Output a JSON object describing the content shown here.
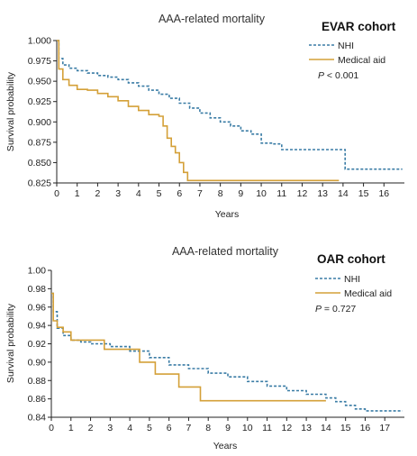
{
  "chart_data": [
    {
      "type": "line",
      "title": "AAA-related mortality",
      "cohort_label": "EVAR cohort",
      "xlabel": "Years",
      "ylabel": "Survival probability",
      "xlim": [
        0,
        17
      ],
      "ylim": [
        0.825,
        1.0
      ],
      "x_ticks": [
        0,
        1,
        2,
        3,
        4,
        5,
        6,
        7,
        8,
        9,
        10,
        11,
        12,
        13,
        14,
        15,
        16
      ],
      "y_ticks": [
        0.825,
        0.85,
        0.875,
        0.9,
        0.925,
        0.95,
        0.975,
        1.0
      ],
      "y_tick_labels": [
        "0.825",
        "0.850",
        "0.875",
        "0.900",
        "0.925",
        "0.950",
        "0.975",
        "1.000"
      ],
      "p_prefix": "P",
      "p_value": " < 0.001",
      "legend_position": "top-right",
      "series": [
        {
          "name": "NHI",
          "color": "#3a7ca5",
          "style": "dashed",
          "x": [
            0,
            0.1,
            0.3,
            0.6,
            1,
            1.5,
            2,
            2.5,
            3,
            3.5,
            4,
            4.5,
            5,
            5.5,
            6,
            6.5,
            7,
            7.5,
            8,
            8.5,
            9,
            9.5,
            10,
            10.5,
            11,
            11.5,
            12,
            12.5,
            13,
            13.5,
            14,
            14.1,
            15,
            16,
            16.9
          ],
          "y": [
            1.0,
            0.978,
            0.97,
            0.966,
            0.963,
            0.96,
            0.957,
            0.955,
            0.952,
            0.948,
            0.944,
            0.939,
            0.934,
            0.929,
            0.923,
            0.917,
            0.911,
            0.905,
            0.9,
            0.895,
            0.889,
            0.885,
            0.874,
            0.873,
            0.866,
            0.866,
            0.866,
            0.866,
            0.866,
            0.866,
            0.866,
            0.842,
            0.842,
            0.842,
            0.842
          ],
          "y_display": [
            1.0,
            0.98,
            0.97,
            0.97,
            0.96,
            0.96,
            0.96,
            0.96,
            0.95,
            0.95,
            0.94,
            0.94,
            0.93,
            0.93,
            0.92,
            0.92,
            0.91,
            0.91,
            0.9,
            0.9,
            0.89,
            0.89,
            0.87,
            0.87,
            0.87,
            0.87,
            0.87,
            0.87,
            0.87,
            0.87,
            0.87,
            0.84,
            0.84,
            0.84,
            0.84
          ]
        },
        {
          "name": "Medical aid",
          "color": "#d4a038",
          "style": "solid",
          "x": [
            0,
            0.1,
            0.3,
            0.6,
            1,
            1.5,
            2,
            2.5,
            3,
            3.5,
            4,
            4.5,
            5,
            5.2,
            5.4,
            5.6,
            5.8,
            6,
            6.2,
            6.4,
            7,
            8,
            9,
            10,
            11,
            12,
            13,
            13.8
          ],
          "y": [
            1.0,
            0.965,
            0.952,
            0.945,
            0.94,
            0.939,
            0.935,
            0.931,
            0.926,
            0.919,
            0.914,
            0.909,
            0.907,
            0.895,
            0.88,
            0.87,
            0.862,
            0.85,
            0.838,
            0.828,
            0.828,
            0.828,
            0.828,
            0.828,
            0.828,
            0.828,
            0.828,
            0.828
          ]
        }
      ]
    },
    {
      "type": "line",
      "title": "AAA-related mortality",
      "cohort_label": "OAR cohort",
      "xlabel": "Years",
      "ylabel": "Survival probability",
      "xlim": [
        0,
        18
      ],
      "ylim": [
        0.84,
        1.0
      ],
      "x_ticks": [
        0,
        1,
        2,
        3,
        4,
        5,
        6,
        7,
        8,
        9,
        10,
        11,
        12,
        13,
        14,
        15,
        16,
        17
      ],
      "y_ticks": [
        0.84,
        0.86,
        0.88,
        0.9,
        0.92,
        0.94,
        0.96,
        0.98,
        1.0
      ],
      "y_tick_labels": [
        "0.84",
        "0.86",
        "0.88",
        "0.90",
        "0.92",
        "0.94",
        "0.96",
        "0.98",
        "1.00"
      ],
      "p_prefix": "P",
      "p_value": " = 0.727",
      "legend_position": "top-right",
      "series": [
        {
          "name": "NHI",
          "color": "#3a7ca5",
          "style": "dashed",
          "x": [
            0,
            0.1,
            0.3,
            0.6,
            1,
            1.5,
            2,
            3,
            4,
            5,
            6,
            7,
            8,
            9,
            10,
            11,
            12,
            13,
            14,
            14.5,
            15,
            15.5,
            16,
            17,
            17.9
          ],
          "y": [
            0.975,
            0.955,
            0.937,
            0.929,
            0.924,
            0.922,
            0.92,
            0.917,
            0.912,
            0.905,
            0.897,
            0.893,
            0.888,
            0.884,
            0.879,
            0.874,
            0.869,
            0.865,
            0.861,
            0.857,
            0.853,
            0.849,
            0.847,
            0.847,
            0.847
          ]
        },
        {
          "name": "Medical aid",
          "color": "#d4a038",
          "style": "solid",
          "x": [
            0,
            0.1,
            0.3,
            0.6,
            1,
            2,
            2.7,
            3,
            4,
            4.5,
            5,
            5.3,
            6,
            6.5,
            7,
            7.6,
            8,
            10,
            12,
            14
          ],
          "y": [
            0.975,
            0.945,
            0.938,
            0.933,
            0.924,
            0.924,
            0.914,
            0.914,
            0.914,
            0.9,
            0.9,
            0.887,
            0.887,
            0.873,
            0.873,
            0.858,
            0.858,
            0.858,
            0.858,
            0.858
          ]
        }
      ]
    }
  ]
}
